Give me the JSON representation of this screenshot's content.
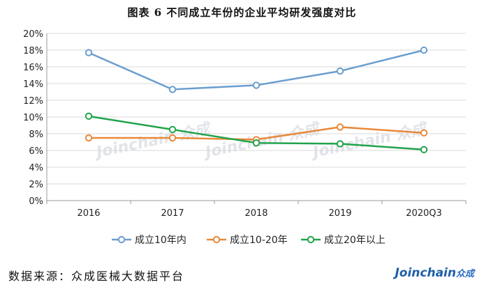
{
  "title": "图表 6 不同成立年份的企业平均研发强度对比",
  "source": "数据来源：众成医械大数据平台",
  "brand": {
    "name": "Joinchain",
    "suffix": "众成"
  },
  "watermark": "Joinchain 众成",
  "chart_data": {
    "type": "line",
    "categories": [
      "2016",
      "2017",
      "2018",
      "2019",
      "2020Q3"
    ],
    "ylim": [
      0,
      20
    ],
    "ytick_step": 2,
    "ytick_format": "percent",
    "grid": true,
    "legend_position": "bottom",
    "series": [
      {
        "name": "成立10年内",
        "color": "#6a9ed0",
        "values": [
          17.7,
          13.3,
          13.8,
          15.5,
          18.0
        ]
      },
      {
        "name": "成立10-20年",
        "color": "#e8893a",
        "values": [
          7.5,
          7.5,
          7.3,
          8.8,
          8.1
        ]
      },
      {
        "name": "成立20年以上",
        "color": "#22a34b",
        "values": [
          10.1,
          8.5,
          6.9,
          6.8,
          6.1
        ]
      }
    ]
  }
}
